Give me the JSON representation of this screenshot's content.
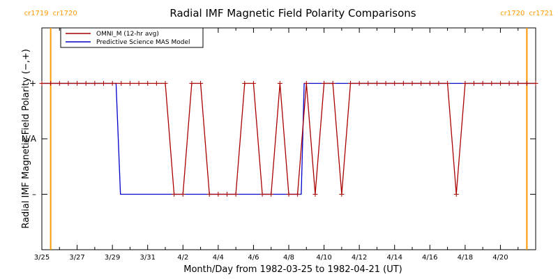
{
  "chart_data": {
    "type": "line",
    "title": "Radial IMF Magnetic Field Polarity Comparisons",
    "xlabel": "Month/Day from 1982-03-25 to 1982-04-21 (UT)",
    "ylabel": "Radial IMF Magnetic Field Polarity (−,+)",
    "x_ticks": [
      "3/25",
      "3/27",
      "3/29",
      "3/31",
      "4/2",
      "4/4",
      "4/6",
      "4/8",
      "4/10",
      "4/12",
      "4/14",
      "4/16",
      "4/18",
      "4/20"
    ],
    "y_levels": [
      {
        "label": "+",
        "value": 1
      },
      {
        "label": "N/A",
        "value": 0
      },
      {
        "label": "–",
        "value": -1
      }
    ],
    "ylim": [
      -2,
      2
    ],
    "xlim": [
      "1982-03-25",
      "1982-04-22"
    ],
    "carrington_markers": [
      {
        "date": "1982-03-25T12:00",
        "left_label": "cr1719",
        "right_label": "cr1720",
        "color": "#ff9900"
      },
      {
        "date": "1982-04-21T12:00",
        "left_label": "cr1720",
        "right_label": "cr1721",
        "color": "#ff9900"
      }
    ],
    "series": [
      {
        "name": "OMNI_M (12-hr avg)",
        "color": "#aa0000",
        "marker": "+",
        "x": [
          "1982-03-25T00:00",
          "1982-03-25T12:00",
          "1982-03-26T00:00",
          "1982-03-26T12:00",
          "1982-03-27T00:00",
          "1982-03-27T12:00",
          "1982-03-28T00:00",
          "1982-03-28T12:00",
          "1982-03-29T00:00",
          "1982-03-29T12:00",
          "1982-03-30T00:00",
          "1982-03-30T12:00",
          "1982-03-31T00:00",
          "1982-03-31T12:00",
          "1982-04-01T00:00",
          "1982-04-01T12:00",
          "1982-04-02T00:00",
          "1982-04-02T12:00",
          "1982-04-03T00:00",
          "1982-04-03T12:00",
          "1982-04-04T00:00",
          "1982-04-04T12:00",
          "1982-04-05T00:00",
          "1982-04-05T12:00",
          "1982-04-06T00:00",
          "1982-04-06T12:00",
          "1982-04-07T00:00",
          "1982-04-07T12:00",
          "1982-04-08T00:00",
          "1982-04-08T12:00",
          "1982-04-09T00:00",
          "1982-04-09T12:00",
          "1982-04-10T00:00",
          "1982-04-10T12:00",
          "1982-04-11T00:00",
          "1982-04-11T12:00",
          "1982-04-12T00:00",
          "1982-04-12T12:00",
          "1982-04-13T00:00",
          "1982-04-13T12:00",
          "1982-04-14T00:00",
          "1982-04-14T12:00",
          "1982-04-15T00:00",
          "1982-04-15T12:00",
          "1982-04-16T00:00",
          "1982-04-16T12:00",
          "1982-04-17T00:00",
          "1982-04-17T12:00",
          "1982-04-18T00:00",
          "1982-04-18T12:00",
          "1982-04-19T00:00",
          "1982-04-19T12:00",
          "1982-04-20T00:00",
          "1982-04-20T12:00",
          "1982-04-21T00:00",
          "1982-04-21T12:00",
          "1982-04-22T00:00"
        ],
        "y": [
          1,
          1,
          1,
          1,
          1,
          1,
          1,
          1,
          1,
          1,
          1,
          1,
          1,
          1,
          1,
          -1,
          -1,
          1,
          1,
          -1,
          -1,
          -1,
          -1,
          1,
          1,
          -1,
          -1,
          1,
          -1,
          -1,
          1,
          -1,
          1,
          1,
          -1,
          1,
          1,
          1,
          1,
          1,
          1,
          1,
          1,
          1,
          1,
          1,
          1,
          -1,
          1,
          1,
          1,
          1,
          1,
          1,
          1,
          1,
          1
        ]
      },
      {
        "name": "Predictive Science MAS Model",
        "color": "#0000cc",
        "x": [
          "1982-03-25T00:00",
          "1982-03-29T05:00",
          "1982-03-29T11:00",
          "1982-04-08T17:00",
          "1982-04-08T21:00",
          "1982-04-22T00:00"
        ],
        "y": [
          1,
          1,
          -1,
          -1,
          1,
          1
        ]
      }
    ],
    "legend_position": "top-left",
    "grid": false
  }
}
